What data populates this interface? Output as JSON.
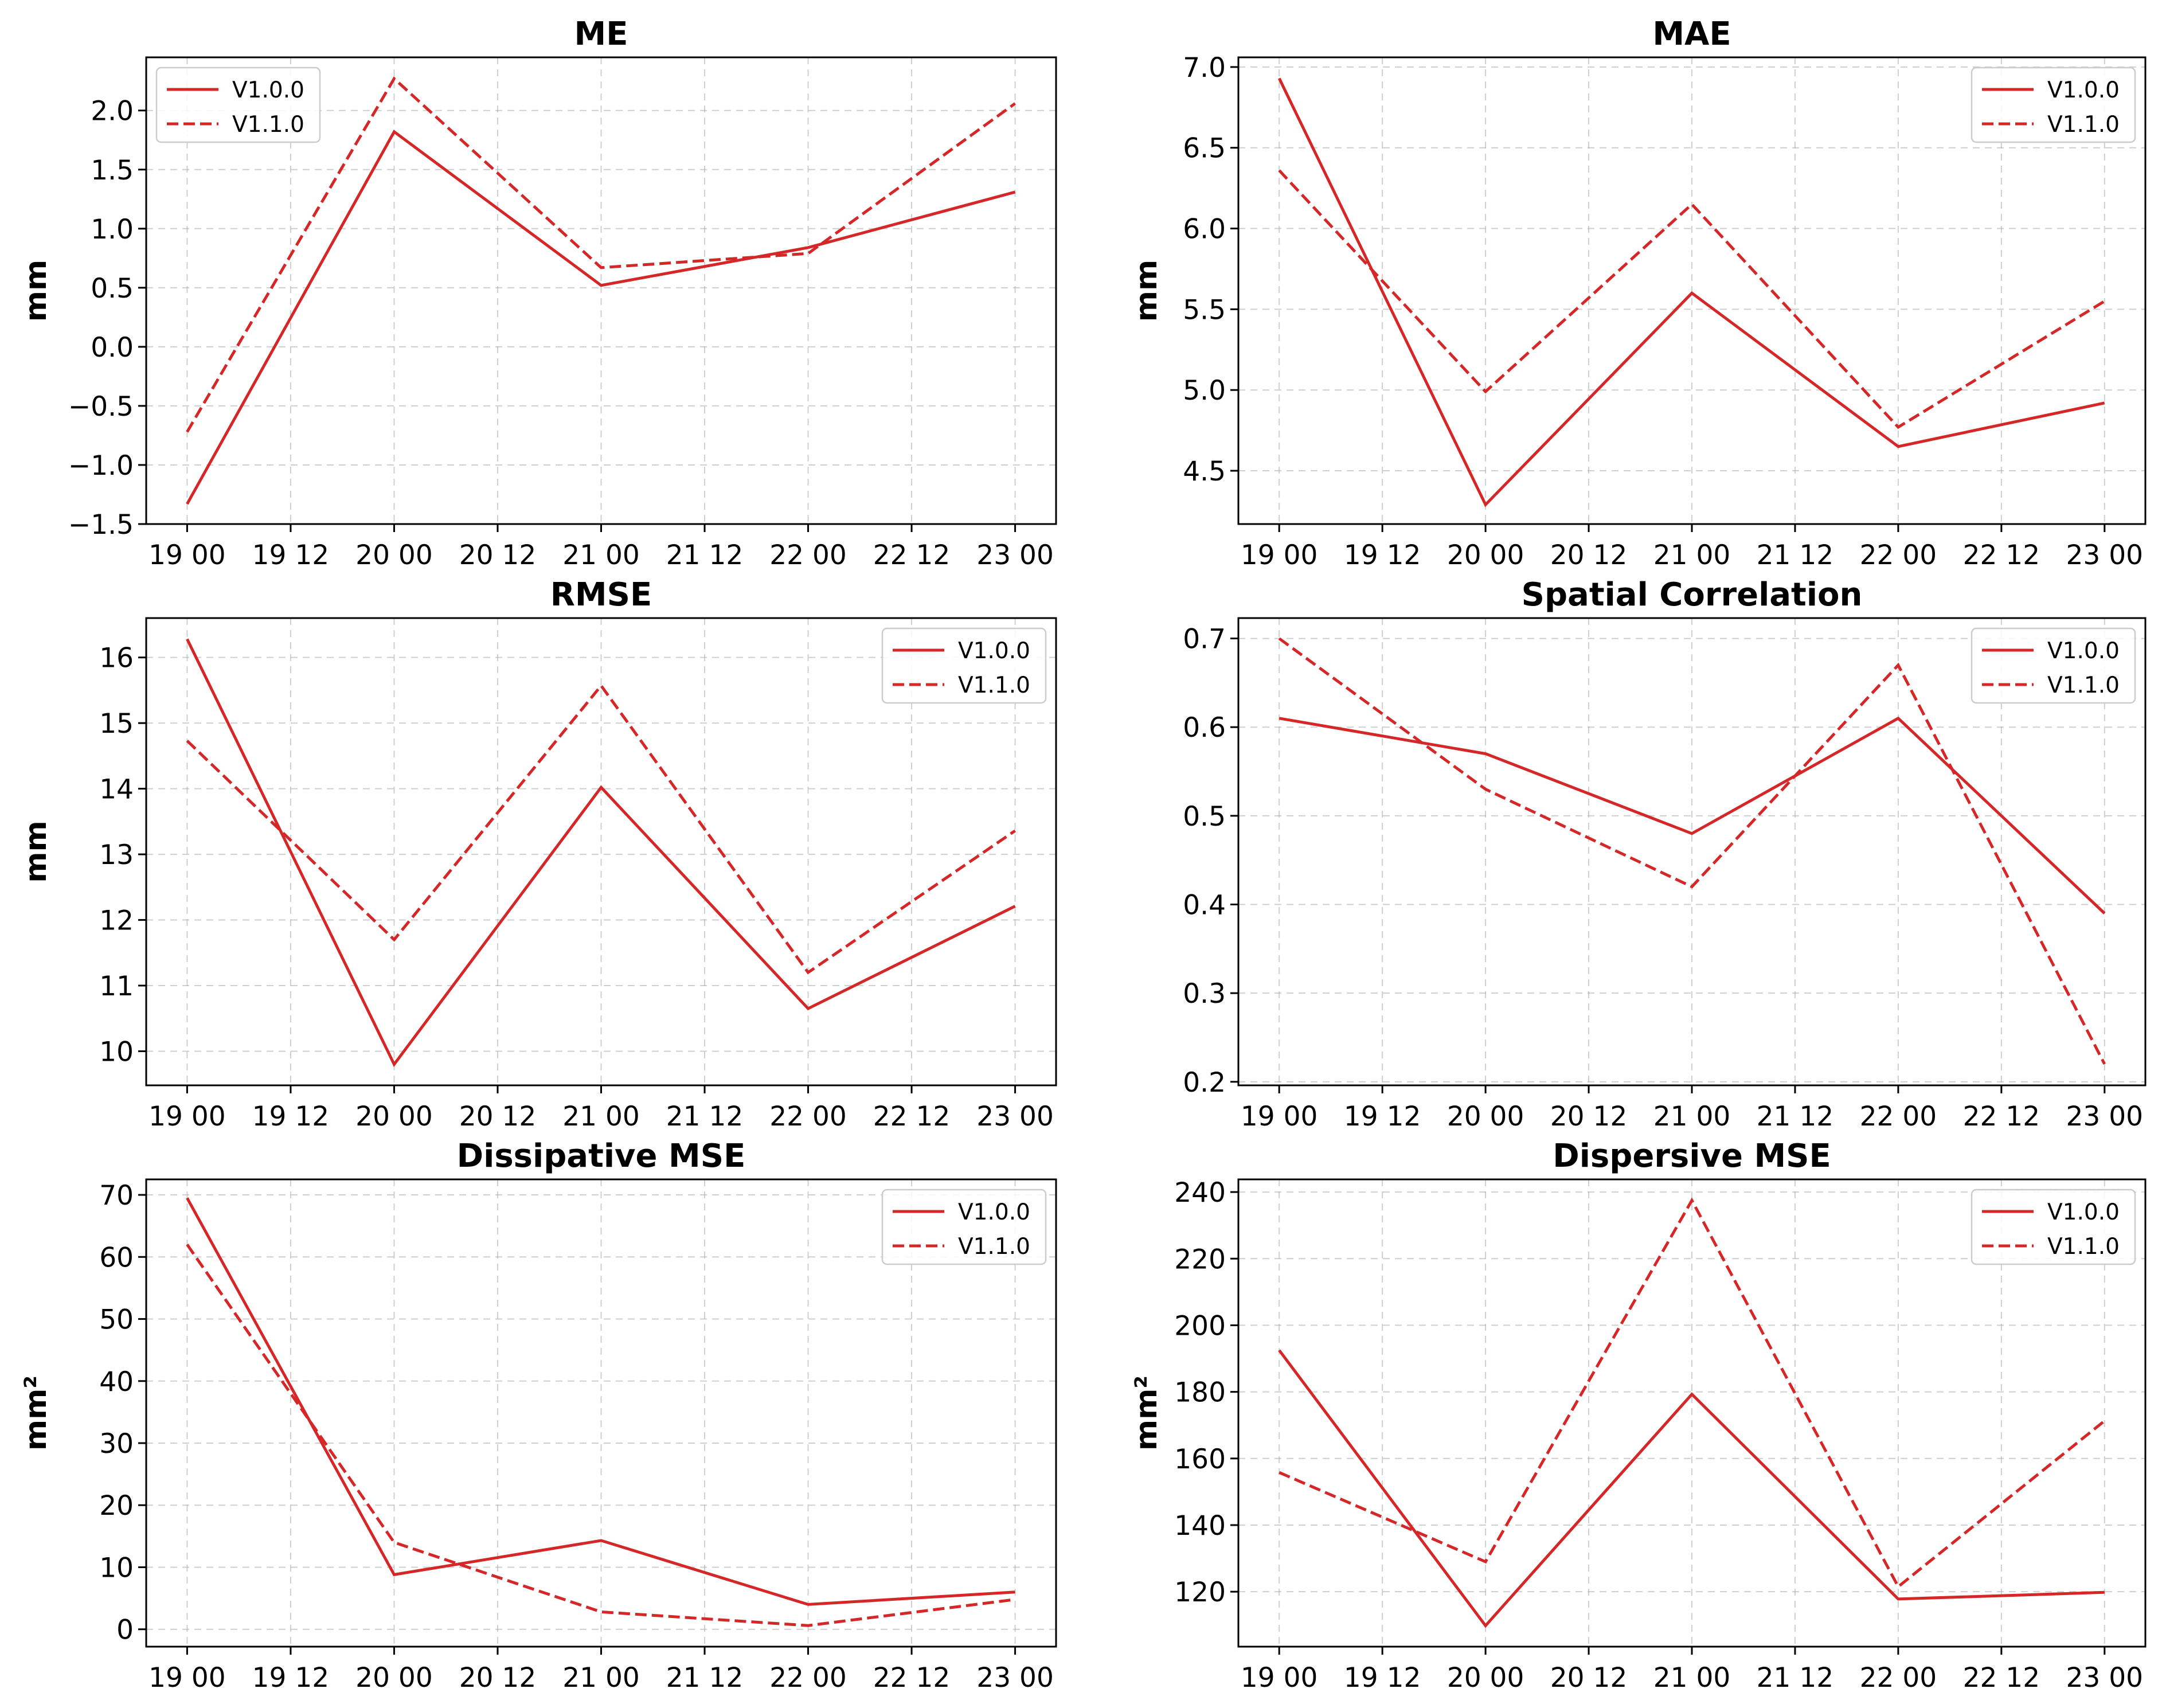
{
  "colors": {
    "series": "#d62728"
  },
  "chart_data": [
    {
      "type": "line",
      "title": "ME",
      "ylabel": "mm",
      "x": [
        "19 00",
        "20 00",
        "21 00",
        "22 00",
        "23 00"
      ],
      "xticks": [
        "19 00",
        "19 12",
        "20 00",
        "20 12",
        "21 00",
        "21 12",
        "22 00",
        "22 12",
        "23 00"
      ],
      "yticks": [
        "−1.5",
        "−1.0",
        "−0.5",
        "0.0",
        "0.5",
        "1.0",
        "1.5",
        "2.0"
      ],
      "ylim": [
        -1.5,
        2.45
      ],
      "legend_position": "upper-left",
      "grid": true,
      "series": [
        {
          "name": "V1.0.0",
          "style": "solid",
          "values": [
            -1.33,
            1.82,
            0.52,
            0.84,
            1.31
          ]
        },
        {
          "name": "V1.1.0",
          "style": "dashed",
          "values": [
            -0.72,
            2.27,
            0.67,
            0.79,
            2.06
          ]
        }
      ]
    },
    {
      "type": "line",
      "title": "MAE",
      "ylabel": "mm",
      "x": [
        "19 00",
        "20 00",
        "21 00",
        "22 00",
        "23 00"
      ],
      "xticks": [
        "19 00",
        "19 12",
        "20 00",
        "20 12",
        "21 00",
        "21 12",
        "22 00",
        "22 12",
        "23 00"
      ],
      "yticks": [
        "4.5",
        "5.0",
        "5.5",
        "6.0",
        "6.5",
        "7.0"
      ],
      "ylim": [
        4.17,
        7.06
      ],
      "legend_position": "upper-right",
      "grid": true,
      "series": [
        {
          "name": "V1.0.0",
          "style": "solid",
          "values": [
            6.93,
            4.29,
            5.6,
            4.65,
            4.92
          ]
        },
        {
          "name": "V1.1.0",
          "style": "dashed",
          "values": [
            6.36,
            4.99,
            6.15,
            4.77,
            5.55
          ]
        }
      ]
    },
    {
      "type": "line",
      "title": "RMSE",
      "ylabel": "mm",
      "x": [
        "19 00",
        "20 00",
        "21 00",
        "22 00",
        "23 00"
      ],
      "xticks": [
        "19 00",
        "19 12",
        "20 00",
        "20 12",
        "21 00",
        "21 12",
        "22 00",
        "22 12",
        "23 00"
      ],
      "yticks": [
        "10",
        "11",
        "12",
        "13",
        "14",
        "15",
        "16"
      ],
      "ylim": [
        9.48,
        16.6
      ],
      "legend_position": "upper-right",
      "grid": true,
      "series": [
        {
          "name": "V1.0.0",
          "style": "solid",
          "values": [
            16.28,
            9.8,
            14.02,
            10.65,
            12.21
          ]
        },
        {
          "name": "V1.1.0",
          "style": "dashed",
          "values": [
            14.73,
            11.7,
            15.57,
            11.2,
            13.36
          ]
        }
      ]
    },
    {
      "type": "line",
      "title": "Spatial Correlation",
      "ylabel": "",
      "x": [
        "19 00",
        "20 00",
        "21 00",
        "22 00",
        "23 00"
      ],
      "xticks": [
        "19 00",
        "19 12",
        "20 00",
        "20 12",
        "21 00",
        "21 12",
        "22 00",
        "22 12",
        "23 00"
      ],
      "yticks": [
        "0.2",
        "0.3",
        "0.4",
        "0.5",
        "0.6",
        "0.7"
      ],
      "ylim": [
        0.196,
        0.723
      ],
      "legend_position": "upper-right",
      "grid": true,
      "series": [
        {
          "name": "V1.0.0",
          "style": "solid",
          "values": [
            0.61,
            0.57,
            0.48,
            0.61,
            0.39
          ]
        },
        {
          "name": "V1.1.0",
          "style": "dashed",
          "values": [
            0.7,
            0.53,
            0.42,
            0.67,
            0.22
          ]
        }
      ]
    },
    {
      "type": "line",
      "title": "Dissipative MSE",
      "ylabel": "mm²",
      "x": [
        "19 00",
        "20 00",
        "21 00",
        "22 00",
        "23 00"
      ],
      "xticks": [
        "19 00",
        "19 12",
        "20 00",
        "20 12",
        "21 00",
        "21 12",
        "22 00",
        "22 12",
        "23 00"
      ],
      "yticks": [
        "0",
        "10",
        "20",
        "30",
        "40",
        "50",
        "60",
        "70"
      ],
      "ylim": [
        -2.8,
        72.5
      ],
      "legend_position": "upper-right",
      "grid": true,
      "series": [
        {
          "name": "V1.0.0",
          "style": "solid",
          "values": [
            69.5,
            8.8,
            14.3,
            4.0,
            6.0
          ]
        },
        {
          "name": "V1.1.0",
          "style": "dashed",
          "values": [
            62.0,
            14.0,
            2.8,
            0.6,
            4.8
          ]
        }
      ]
    },
    {
      "type": "line",
      "title": "Dispersive MSE",
      "ylabel": "mm²",
      "x": [
        "19 00",
        "20 00",
        "21 00",
        "22 00",
        "23 00"
      ],
      "xticks": [
        "19 00",
        "19 12",
        "20 00",
        "20 12",
        "21 00",
        "21 12",
        "22 00",
        "22 12",
        "23 00"
      ],
      "yticks": [
        "120",
        "140",
        "160",
        "180",
        "200",
        "220",
        "240"
      ],
      "ylim": [
        103.5,
        243.8
      ],
      "legend_position": "upper-right",
      "grid": true,
      "series": [
        {
          "name": "V1.0.0",
          "style": "solid",
          "values": [
            192.5,
            109.8,
            179.3,
            117.8,
            119.8
          ]
        },
        {
          "name": "V1.1.0",
          "style": "dashed",
          "values": [
            155.8,
            129.0,
            237.5,
            121.5,
            171.3
          ]
        }
      ]
    }
  ]
}
